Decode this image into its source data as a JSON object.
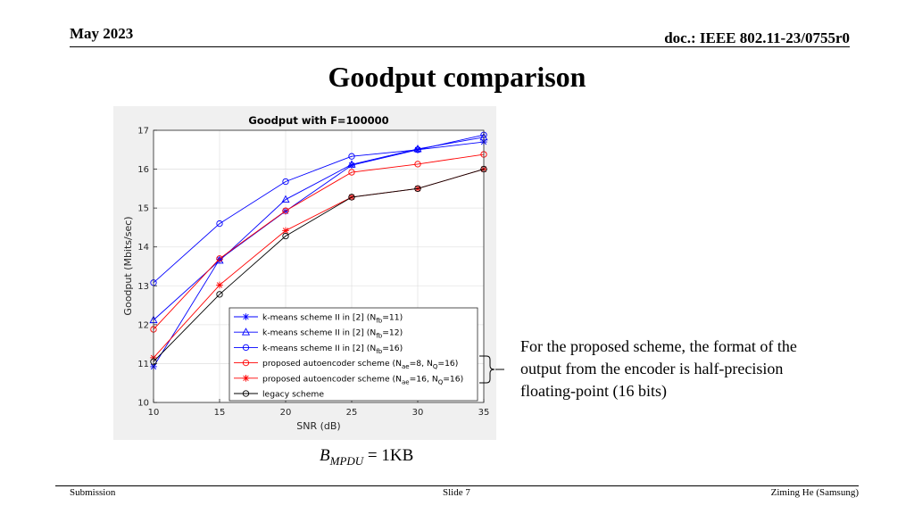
{
  "header": {
    "date": "May 2023",
    "doc": "doc.: IEEE 802.11-23/0755r0"
  },
  "slide": {
    "title": "Goodput comparison"
  },
  "note": "For the proposed scheme, the format of the output from the encoder is half-precision floating-point (16 bits)",
  "mpdu": {
    "symbol": "B",
    "subscript": "MPDU",
    "value": "= 1KB"
  },
  "footer": {
    "left": "Submission",
    "center": "Slide 7",
    "right": "Ziming He (Samsung)"
  },
  "chart_data": {
    "type": "line",
    "title": "Goodput with F=100000",
    "xlabel": "SNR (dB)",
    "ylabel": "Goodput (Mbits/sec)",
    "xlim": [
      10,
      35
    ],
    "ylim": [
      10,
      17
    ],
    "xticks": [
      10,
      15,
      20,
      25,
      30,
      35
    ],
    "yticks": [
      10,
      11,
      12,
      13,
      14,
      15,
      16,
      17
    ],
    "grid": true,
    "legend_position": "bottom-right",
    "x": [
      10,
      15,
      20,
      25,
      30,
      35
    ],
    "series": [
      {
        "name": "k-means scheme II in [2] (N_fb=11)",
        "legend": [
          "k-means scheme II in [2] (N",
          "fb",
          "=11)"
        ],
        "color": "#0000ff",
        "marker": "asterisk",
        "values": [
          10.92,
          13.68,
          14.92,
          16.1,
          16.5,
          16.7
        ]
      },
      {
        "name": "k-means scheme II in [2] (N_fb=12)",
        "legend": [
          "k-means scheme II in [2] (N",
          "fb",
          "=12)"
        ],
        "color": "#0000ff",
        "marker": "triangle",
        "values": [
          12.12,
          13.65,
          15.22,
          16.12,
          16.52,
          16.82
        ]
      },
      {
        "name": "k-means scheme II in [2] (N_fb=16)",
        "legend": [
          "k-means scheme II in [2] (N",
          "fb",
          "=16)"
        ],
        "color": "#0000ff",
        "marker": "circle",
        "values": [
          13.08,
          14.6,
          15.68,
          16.33,
          16.5,
          16.88
        ]
      },
      {
        "name": "proposed autoencoder scheme (N_ae=8, N_Q=16)",
        "legend": [
          "proposed autoencoder scheme (N",
          "ae",
          "=8, N",
          "Q",
          "=16)"
        ],
        "color": "#ff0000",
        "marker": "circle",
        "values": [
          11.88,
          13.7,
          14.93,
          15.92,
          16.13,
          16.38
        ]
      },
      {
        "name": "proposed autoencoder scheme (N_ae=16, N_Q=16)",
        "legend": [
          "proposed autoencoder scheme (N",
          "ae",
          "=16, N",
          "Q",
          "=16)"
        ],
        "color": "#ff0000",
        "marker": "asterisk",
        "values": [
          11.15,
          13.02,
          14.42,
          15.28,
          15.5,
          16.0
        ]
      },
      {
        "name": "legacy scheme",
        "legend": [
          "legacy scheme"
        ],
        "color": "#000000",
        "marker": "circle",
        "values": [
          11.05,
          12.78,
          14.28,
          15.28,
          15.5,
          16.0
        ]
      }
    ]
  }
}
